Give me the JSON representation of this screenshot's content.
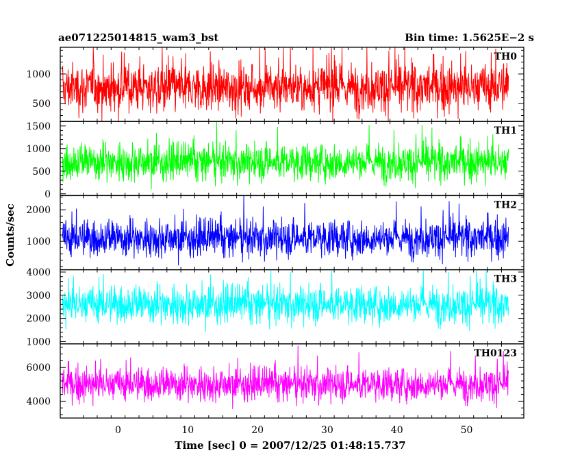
{
  "chart_data": {
    "type": "line",
    "title": "ae071225014815_wam3_bst",
    "subtitle": "Bin time: 1.5625E−2 s",
    "xlabel": "Time [sec] 0 = 2007/12/25 01:48:15.737",
    "ylabel": "Counts/sec",
    "xlim": [
      -8.3,
      58.2
    ],
    "x_data_range": [
      -8.0,
      56.0
    ],
    "xticks": [
      0,
      10,
      20,
      30,
      40,
      50
    ],
    "grid": false,
    "panels": [
      {
        "name": "TH0",
        "color": "#ff0000",
        "ylim": [
          200,
          1450
        ],
        "yticks": [
          500,
          1000
        ],
        "noise": {
          "low": 170,
          "q_low": 420,
          "median": 770,
          "q_high": 1120,
          "high": 1450
        }
      },
      {
        "name": "TH1",
        "color": "#00ff00",
        "ylim": [
          -40,
          1600
        ],
        "yticks": [
          0,
          500,
          1000,
          1500
        ],
        "noise": {
          "low": 20,
          "q_low": 360,
          "median": 700,
          "q_high": 1060,
          "high": 1600
        }
      },
      {
        "name": "TH2",
        "color": "#0000ff",
        "ylim": [
          100,
          2450
        ],
        "yticks": [
          1000,
          2000
        ],
        "noise": {
          "low": 180,
          "q_low": 650,
          "median": 1100,
          "q_high": 1650,
          "high": 2450
        }
      },
      {
        "name": "TH3",
        "color": "#00ffff",
        "ylim": [
          900,
          4100
        ],
        "yticks": [
          1000,
          2000,
          3000,
          4000
        ],
        "noise": {
          "low": 1000,
          "q_low": 1900,
          "median": 2600,
          "q_high": 3300,
          "high": 4100
        }
      },
      {
        "name": "TH0123",
        "color": "#ff00ff",
        "ylim": [
          3000,
          7400
        ],
        "yticks": [
          4000,
          6000
        ],
        "noise": {
          "low": 3100,
          "q_low": 4200,
          "median": 5000,
          "q_high": 5900,
          "high": 7400
        }
      }
    ]
  }
}
